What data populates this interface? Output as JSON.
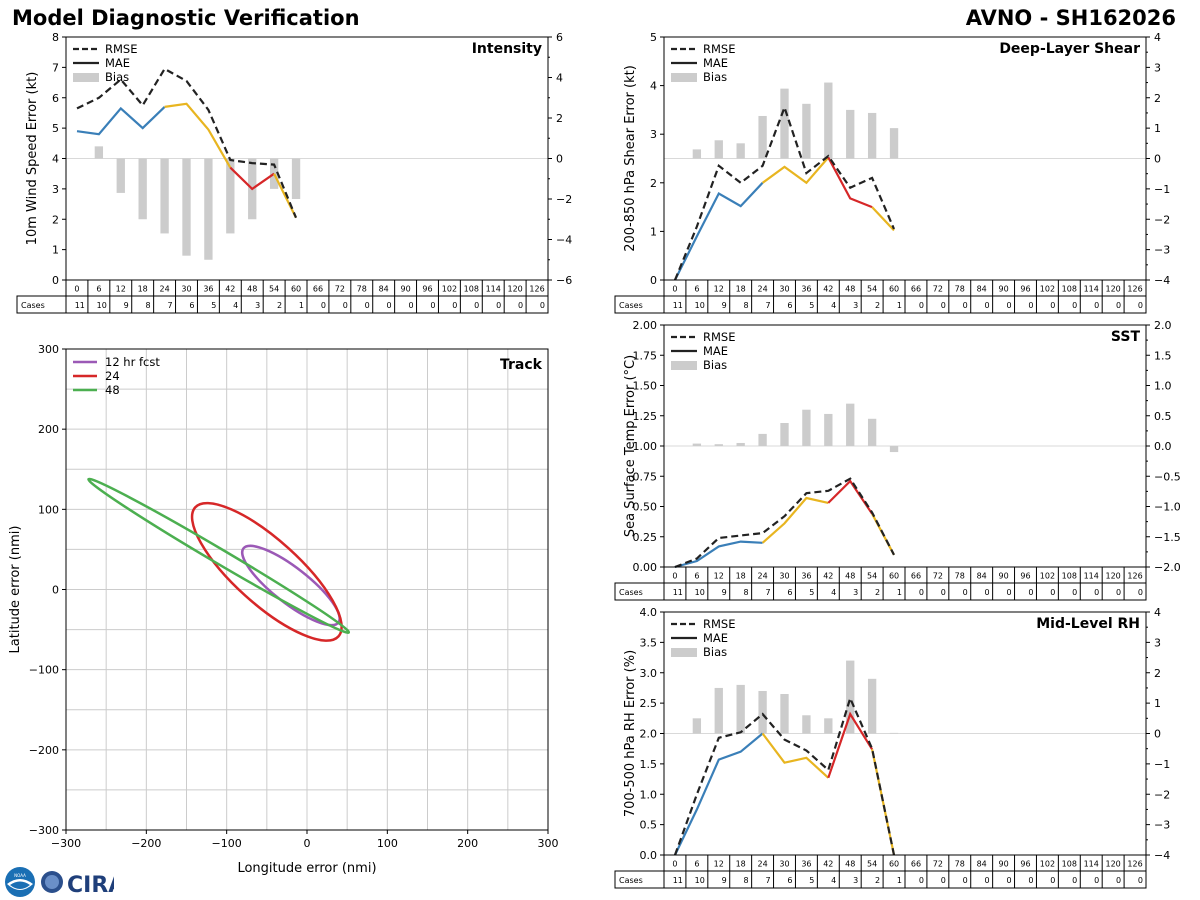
{
  "header": {
    "title_left": "Model Diagnostic Verification",
    "title_right": "AVNO - SH162026"
  },
  "logos": {
    "noaa_text": "NOAA",
    "cira_text": "CIRA"
  },
  "colors": {
    "blue": "#3a7fb8",
    "yellow": "#e8b520",
    "red": "#d62728",
    "dash": "#222222",
    "bias": "#cccccc",
    "purple": "#9b59b6",
    "green": "#4caf50",
    "grid": "#cccccc"
  },
  "table": {
    "cases_label": "Cases",
    "hours": [
      0,
      6,
      12,
      18,
      24,
      30,
      36,
      42,
      48,
      54,
      60,
      66,
      72,
      78,
      84,
      90,
      96,
      102,
      108,
      114,
      120,
      126
    ],
    "cases": [
      11,
      10,
      9,
      8,
      7,
      6,
      5,
      4,
      3,
      2,
      1,
      0,
      0,
      0,
      0,
      0,
      0,
      0,
      0,
      0,
      0,
      0
    ]
  },
  "chart_data": [
    {
      "id": "intensity",
      "type": "line",
      "title": "Intensity",
      "ylabel": "10m Wind Speed Error (kt)",
      "ylim": [
        0,
        8
      ],
      "yticks": [
        "0",
        "1",
        "2",
        "3",
        "4",
        "5",
        "6",
        "7",
        "8"
      ],
      "y2lim": [
        -6,
        6
      ],
      "y2ticks": [
        "−6",
        "−4",
        "−2",
        "0",
        "2",
        "4",
        "6"
      ],
      "legend": [
        "RMSE",
        "MAE",
        "Bias"
      ],
      "x": [
        0,
        6,
        12,
        18,
        24,
        30,
        36,
        42,
        48,
        54,
        60
      ],
      "rmse": [
        5.65,
        6.0,
        6.6,
        5.75,
        6.95,
        6.55,
        5.6,
        3.95,
        3.85,
        3.8,
        2.05
      ],
      "mae": [
        4.9,
        4.8,
        5.65,
        5.0,
        5.7,
        5.8,
        4.95,
        3.7,
        3.0,
        3.5,
        2.05
      ],
      "bias": [
        0,
        0.6,
        -1.7,
        -3.0,
        -3.7,
        -4.8,
        -5.0,
        -3.7,
        -3.0,
        -1.5,
        -2.0
      ]
    },
    {
      "id": "shear",
      "type": "line",
      "title": "Deep-Layer Shear",
      "ylabel": "200-850 hPa Shear Error (kt)",
      "ylim": [
        0,
        5
      ],
      "yticks": [
        "0",
        "1",
        "2",
        "3",
        "4",
        "5"
      ],
      "y2lim": [
        -4,
        4
      ],
      "y2ticks": [
        "−4",
        "−3",
        "−2",
        "−1",
        "0",
        "1",
        "2",
        "3",
        "4"
      ],
      "legend": [
        "RMSE",
        "MAE",
        "Bias"
      ],
      "x": [
        0,
        6,
        12,
        18,
        24,
        30,
        36,
        42,
        48,
        54,
        60
      ],
      "rmse": [
        0.0,
        1.1,
        2.35,
        2.0,
        2.35,
        3.55,
        2.2,
        2.55,
        1.9,
        2.1,
        1.05
      ],
      "mae": [
        0.0,
        0.9,
        1.78,
        1.52,
        2.0,
        2.33,
        2.0,
        2.52,
        1.68,
        1.5,
        1.02
      ],
      "bias": [
        0,
        0.3,
        0.6,
        0.5,
        1.4,
        2.3,
        1.8,
        2.5,
        1.6,
        1.5,
        1.0
      ]
    },
    {
      "id": "sst",
      "type": "line",
      "title": "SST",
      "ylabel": "Sea Surface Temp Error (°C)",
      "ylim": [
        0,
        2
      ],
      "yticks": [
        "0.00",
        "0.25",
        "0.50",
        "0.75",
        "1.00",
        "1.25",
        "1.50",
        "1.75",
        "2.00"
      ],
      "y2lim": [
        -2,
        2
      ],
      "y2ticks": [
        "−2.0",
        "−1.5",
        "−1.0",
        "−0.5",
        "0.0",
        "0.5",
        "1.0",
        "1.5",
        "2.0"
      ],
      "legend": [
        "RMSE",
        "MAE",
        "Bias"
      ],
      "x": [
        0,
        6,
        12,
        18,
        24,
        30,
        36,
        42,
        48,
        54,
        60
      ],
      "rmse": [
        0.0,
        0.07,
        0.24,
        0.26,
        0.28,
        0.42,
        0.61,
        0.63,
        0.73,
        0.45,
        0.1
      ],
      "mae": [
        0.0,
        0.05,
        0.17,
        0.21,
        0.2,
        0.36,
        0.57,
        0.53,
        0.71,
        0.44,
        0.1
      ],
      "bias": [
        0,
        0.04,
        0.03,
        0.05,
        0.2,
        0.38,
        0.6,
        0.53,
        0.7,
        0.45,
        -0.1
      ]
    },
    {
      "id": "rh",
      "type": "line",
      "title": "Mid-Level RH",
      "ylabel": "700-500 hPa RH Error (%)",
      "ylim": [
        0,
        4
      ],
      "yticks": [
        "0.0",
        "0.5",
        "1.0",
        "1.5",
        "2.0",
        "2.5",
        "3.0",
        "3.5",
        "4.0"
      ],
      "y2lim": [
        -4,
        4
      ],
      "y2ticks": [
        "−4",
        "−3",
        "−2",
        "−1",
        "0",
        "1",
        "2",
        "3",
        "4"
      ],
      "legend": [
        "RMSE",
        "MAE",
        "Bias"
      ],
      "x": [
        0,
        6,
        12,
        18,
        24,
        30,
        36,
        42,
        48,
        54,
        60
      ],
      "rmse": [
        0.0,
        1.0,
        1.93,
        2.02,
        2.32,
        1.9,
        1.72,
        1.4,
        2.58,
        1.75,
        0.0
      ],
      "mae": [
        0.0,
        0.75,
        1.57,
        1.7,
        2.0,
        1.52,
        1.6,
        1.27,
        2.32,
        1.74,
        0.0
      ],
      "bias": [
        0,
        0.5,
        1.5,
        1.6,
        1.4,
        1.3,
        0.6,
        0.5,
        2.4,
        1.8,
        0.02
      ]
    },
    {
      "id": "track",
      "type": "scatter",
      "title": "Track",
      "xlabel": "Longitude error (nmi)",
      "ylabel": "Latitude error (nmi)",
      "xlim": [
        -300,
        300
      ],
      "ylim": [
        -300,
        300
      ],
      "xticks": [
        "−300",
        "−200",
        "−100",
        "0",
        "100",
        "200",
        "300"
      ],
      "yticks": [
        "−300",
        "−200",
        "−100",
        "0",
        "100",
        "200",
        "300"
      ],
      "legend": [
        "12 hr fcst",
        "24",
        "48"
      ],
      "ellipses": [
        {
          "label": "12 hr fcst",
          "cx": -20,
          "cy": 5,
          "a": 75,
          "b": 22,
          "angle_deg": -38
        },
        {
          "label": "24",
          "cx": -50,
          "cy": 22,
          "a": 120,
          "b": 40,
          "angle_deg": -42
        },
        {
          "label": "48",
          "cx": -110,
          "cy": 42,
          "a": 188,
          "b": 9,
          "angle_deg": -30.5
        }
      ]
    }
  ]
}
